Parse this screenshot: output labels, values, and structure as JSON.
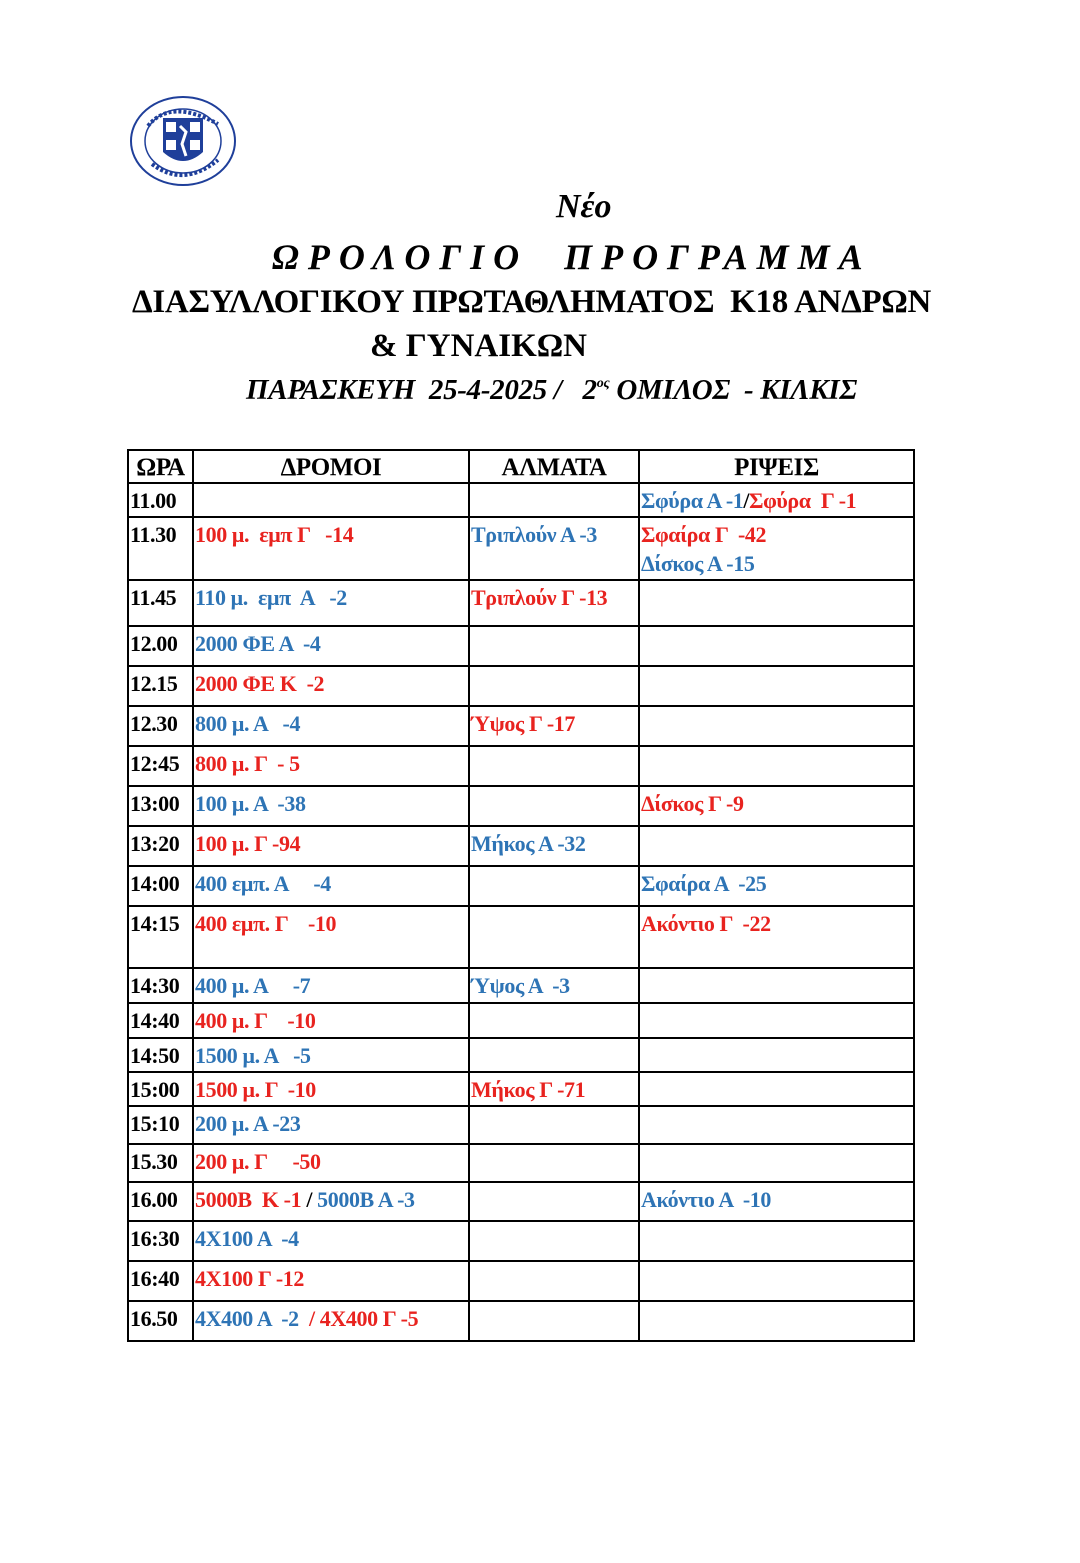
{
  "logo": {
    "text": "Ε.Α.Σ. ΣΕΓΑΣ Κ. ΜΑΚΕΔΟΝΙΑΣ · ΕΤΟΣ ΙΔΡΥΣΗΣ 2016",
    "colors": {
      "blue": "#1f3f9a"
    }
  },
  "header": {
    "neo": "Νέο",
    "title": "ΩΡΟΛΟΓΙΟ  ΠΡΟΓΡΑΜΜΑ",
    "subtitle_line1": "ΔΙΑΣΥΛΛΟΓΙΚΟΥ ΠΡΩΤΑΘΛΗΜΑΤΟΣ  Κ18 ΑΝΔΡΩΝ",
    "subtitle_line2": "& ΓΥΝΑΙΚΩΝ",
    "date_part": "ΠΑΡΑΣΚΕΥΗ  25-4-2025 /   2",
    "sup": "ος",
    "group_part": " ΟΜΙΛΟΣ  - ΚΙΛΚΙΣ"
  },
  "colors": {
    "red": "#e8231f",
    "blue": "#2e74b5"
  },
  "table": {
    "columns": [
      "ΩΡΑ",
      "ΔΡΟΜΟΙ",
      "ΑΛΜΑΤΑ",
      "ΡΙΨΕΙΣ"
    ],
    "rows": [
      {
        "time": "11.00",
        "cells": [
          [],
          [],
          [
            {
              "t": "Σφύρα Α -1",
              "c": "blue"
            },
            {
              "t": "/",
              "c": "black"
            },
            {
              "t": "Σφύρα  Γ -1",
              "c": "red"
            }
          ]
        ]
      },
      {
        "time": "11.30",
        "cells": [
          [
            {
              "t": "100 μ.  εμπ Γ   -14",
              "c": "red"
            }
          ],
          [
            {
              "t": "Τριπλούν Α -3",
              "c": "blue"
            }
          ],
          [
            {
              "t": "Σφαίρα Γ  -42",
              "c": "red"
            },
            {
              "t": "\nΔίσκος Α -15",
              "c": "blue"
            }
          ]
        ]
      },
      {
        "time": "11.45",
        "cells": [
          [
            {
              "t": "110 μ.  εμπ  Α   -2",
              "c": "blue"
            }
          ],
          [
            {
              "t": "Τριπλούν Γ -13",
              "c": "red"
            }
          ],
          []
        ]
      },
      {
        "time": "12.00",
        "cells": [
          [
            {
              "t": "2000 ΦΕ Α  -4",
              "c": "blue"
            }
          ],
          [],
          []
        ]
      },
      {
        "time": "12.15",
        "cells": [
          [
            {
              "t": "2000 ΦΕ Κ  -2",
              "c": "red"
            }
          ],
          [],
          []
        ]
      },
      {
        "time": "12.30",
        "cells": [
          [
            {
              "t": "800 μ. Α   -4",
              "c": "blue"
            }
          ],
          [
            {
              "t": "Ύψος Γ -17",
              "c": "red"
            }
          ],
          []
        ]
      },
      {
        "time": "12:45",
        "cells": [
          [
            {
              "t": "800 μ. Γ  - 5",
              "c": "red"
            }
          ],
          [],
          []
        ]
      },
      {
        "time": "13:00",
        "cells": [
          [
            {
              "t": "100 μ. Α  -38",
              "c": "blue"
            }
          ],
          [],
          [
            {
              "t": "Δίσκος Γ -9",
              "c": "red"
            }
          ]
        ]
      },
      {
        "time": "13:20",
        "cells": [
          [
            {
              "t": "100 μ. Γ -94",
              "c": "red"
            }
          ],
          [
            {
              "t": "Μήκος Α -32",
              "c": "blue"
            }
          ],
          []
        ]
      },
      {
        "time": "14:00",
        "cells": [
          [
            {
              "t": "400 εμπ. Α     -4",
              "c": "blue"
            }
          ],
          [],
          [
            {
              "t": "Σφαίρα Α  -25",
              "c": "blue"
            }
          ]
        ]
      },
      {
        "time": "14:15",
        "cells": [
          [
            {
              "t": "400 εμπ. Γ    -10",
              "c": "red"
            }
          ],
          [],
          [
            {
              "t": "Ακόντιο Γ  -22",
              "c": "red"
            }
          ]
        ]
      },
      {
        "time": "14:30",
        "cells": [
          [
            {
              "t": "400 μ. Α     -7",
              "c": "blue"
            }
          ],
          [
            {
              "t": "Ύψος Α  -3",
              "c": "blue"
            }
          ],
          []
        ]
      },
      {
        "time": "14:40",
        "cells": [
          [
            {
              "t": "400 μ. Γ    -10",
              "c": "red"
            }
          ],
          [],
          []
        ]
      },
      {
        "time": "14:50",
        "cells": [
          [
            {
              "t": "1500 μ. Α   -5",
              "c": "blue"
            }
          ],
          [],
          []
        ]
      },
      {
        "time": "15:00",
        "cells": [
          [
            {
              "t": "1500 μ. Γ  -10",
              "c": "red"
            }
          ],
          [
            {
              "t": "Μήκος Γ -71",
              "c": "red"
            }
          ],
          []
        ]
      },
      {
        "time": "15:10",
        "cells": [
          [
            {
              "t": "200 μ. Α -23",
              "c": "blue"
            }
          ],
          [],
          []
        ]
      },
      {
        "time": "15.30",
        "cells": [
          [
            {
              "t": "200 μ. Γ     -50",
              "c": "red"
            }
          ],
          [],
          []
        ]
      },
      {
        "time": "16.00",
        "cells": [
          [
            {
              "t": "5000Β  Κ -1",
              "c": "red"
            },
            {
              "t": " / ",
              "c": "black"
            },
            {
              "t": "5000Β Α -3",
              "c": "blue"
            }
          ],
          [],
          [
            {
              "t": "Ακόντιο Α  -10",
              "c": "blue"
            }
          ]
        ]
      },
      {
        "time": "16:30",
        "cells": [
          [
            {
              "t": "4Χ100 Α  -4",
              "c": "blue"
            }
          ],
          [],
          []
        ]
      },
      {
        "time": "16:40",
        "cells": [
          [
            {
              "t": "4Χ100 Γ -12",
              "c": "red"
            }
          ],
          [],
          []
        ]
      },
      {
        "time": "16.50",
        "cells": [
          [
            {
              "t": "4Χ400 Α  -2",
              "c": "blue"
            },
            {
              "t": "  / ",
              "c": "red"
            },
            {
              "t": "4Χ400 Γ -5",
              "c": "red"
            }
          ],
          [],
          []
        ]
      }
    ]
  }
}
